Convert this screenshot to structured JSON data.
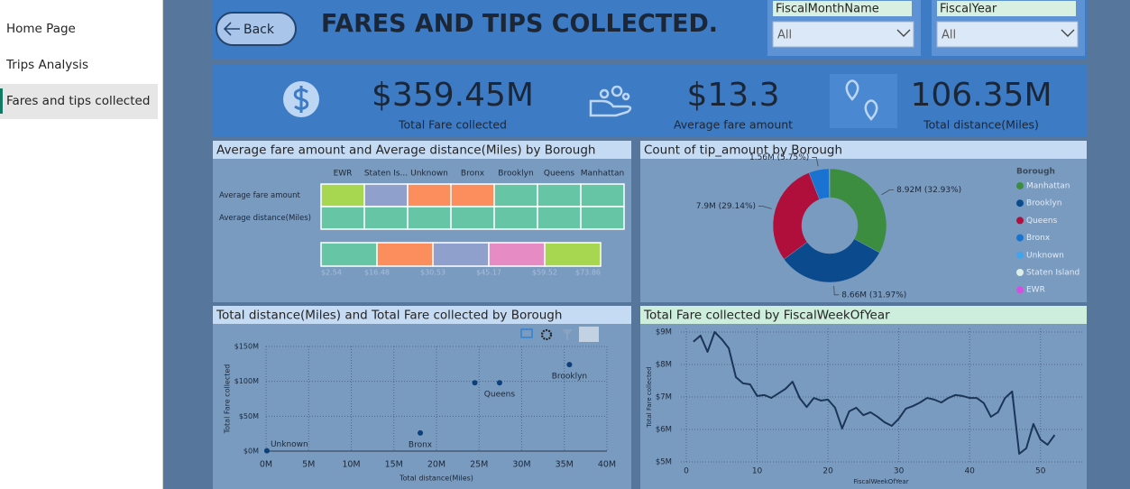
{
  "nav": {
    "items": [
      "Home Page",
      "Trips Analysis",
      "Fares and tips collected"
    ],
    "selected": 2
  },
  "header": {
    "back": "Back",
    "title": "FARES AND TIPS COLLECTED.",
    "slicers": [
      {
        "label": "FiscalMonthName",
        "value": "All"
      },
      {
        "label": "FiscalYear",
        "value": "All"
      }
    ]
  },
  "kpis": [
    {
      "value": "$359.45M",
      "label": "Total Fare collected"
    },
    {
      "value": "$13.3",
      "label": "Average fare amount"
    },
    {
      "value": "106.35M",
      "label": "Total distance(Miles)"
    }
  ],
  "chart_data": [
    {
      "type": "heatmap",
      "title": "Average fare amount and Average distance(Miles) by Borough",
      "columns": [
        "EWR",
        "Staten Is...",
        "Unknown",
        "Bronx",
        "Brooklyn",
        "Queens",
        "Manhattan"
      ],
      "rows": [
        "Average fare amount",
        "Average distance(Miles)"
      ],
      "values": [
        [
          65,
          38,
          22,
          22,
          15,
          15,
          12
        ],
        [
          3,
          10,
          3,
          5,
          4,
          8,
          2
        ]
      ],
      "bins": [
        {
          "value": 2.54,
          "label": "$2.54"
        },
        {
          "value": 16.48,
          "label": "$16.48"
        },
        {
          "value": 30.53,
          "label": "$30.53"
        },
        {
          "value": 45.17,
          "label": "$45.17"
        },
        {
          "value": 59.52,
          "label": "$59.52"
        },
        {
          "value": 73.86,
          "label": "$73.86"
        }
      ],
      "colors": [
        "#66c5a4",
        "#fc8d5c",
        "#8fa0cc",
        "#e68bc3",
        "#a7d651"
      ]
    },
    {
      "type": "donut",
      "title": "Count of tip_amount by Borough",
      "legend_title": "Borough",
      "categories": [
        "Manhattan",
        "Brooklyn",
        "Queens",
        "Bronx",
        "Unknown",
        "Staten Island",
        "EWR"
      ],
      "values": [
        8920000,
        8660000,
        7900000,
        1560000,
        30000,
        15000,
        5000
      ],
      "value_labels": [
        "8.92M (32.93%)",
        "8.66M (31.97%)",
        "7.9M (29.14%)",
        "1.56M (5.75%)",
        null,
        null,
        null
      ],
      "colors": [
        "#3d8d40",
        "#0c4a8e",
        "#b10f3b",
        "#1a73d1",
        "#40a4ee",
        "#dcefe6",
        "#d54fe0"
      ]
    },
    {
      "type": "scatter",
      "title": "Total distance(Miles) and Total Fare collected by Borough",
      "x_label": "Total distance(Miles)",
      "y_label": "Total Fare collected",
      "labels": [
        "Unknown",
        "Bronx",
        null,
        "Queens",
        "Brooklyn"
      ],
      "x": [
        100000,
        18100000,
        24500000,
        27400000,
        35600000
      ],
      "values": [
        500000,
        26000000,
        98000000,
        98000000,
        124000000
      ],
      "color": "#0d3f7a",
      "xlim": [
        0,
        40000000
      ],
      "xticks": [
        {
          "value": 0,
          "label": "0M"
        },
        {
          "value": 5000000,
          "label": "5M"
        },
        {
          "value": 10000000,
          "label": "10M"
        },
        {
          "value": 15000000,
          "label": "15M"
        },
        {
          "value": 20000000,
          "label": "20M"
        },
        {
          "value": 25000000,
          "label": "25M"
        },
        {
          "value": 30000000,
          "label": "30M"
        },
        {
          "value": 35000000,
          "label": "35M"
        },
        {
          "value": 40000000,
          "label": "40M"
        }
      ],
      "ylim": [
        0,
        150000000
      ],
      "yticks": [
        {
          "value": 0,
          "label": "$0M"
        },
        {
          "value": 50000000,
          "label": "$50M"
        },
        {
          "value": 100000000,
          "label": "$100M"
        },
        {
          "value": 150000000,
          "label": "$150M"
        }
      ],
      "grid": true
    },
    {
      "type": "line",
      "title": "Total Fare collected by FiscalWeekOfYear",
      "x_label": "FiscalWeekOfYear",
      "y_label": "Total Fare collected",
      "x": [
        1,
        2,
        3,
        4,
        5,
        6,
        7,
        8,
        9,
        10,
        11,
        12,
        13,
        14,
        15,
        16,
        17,
        18,
        19,
        20,
        21,
        22,
        23,
        24,
        25,
        26,
        27,
        28,
        29,
        30,
        31,
        32,
        33,
        34,
        35,
        36,
        37,
        38,
        39,
        40,
        41,
        42,
        43,
        44,
        45,
        46,
        47,
        48,
        49,
        50,
        51,
        52
      ],
      "values": [
        8700000,
        8890000,
        8390000,
        9000000,
        8780000,
        8500000,
        7610000,
        7420000,
        7390000,
        7030000,
        7060000,
        6970000,
        7110000,
        7250000,
        7470000,
        6970000,
        6690000,
        6970000,
        6890000,
        6920000,
        6670000,
        6030000,
        6560000,
        6670000,
        6440000,
        6530000,
        6390000,
        6220000,
        6110000,
        6330000,
        6640000,
        6720000,
        6830000,
        6970000,
        6920000,
        6830000,
        6970000,
        7060000,
        7030000,
        6970000,
        6970000,
        6810000,
        6390000,
        6530000,
        6970000,
        7170000,
        5250000,
        5420000,
        6170000,
        5690000,
        5530000,
        5830000
      ],
      "color": "#1b3556",
      "xlim": [
        0,
        55
      ],
      "xticks": [
        0,
        10,
        20,
        30,
        40,
        50
      ],
      "ylim": [
        5000000,
        9000000
      ],
      "yticks": [
        {
          "value": 5000000,
          "label": "$5M"
        },
        {
          "value": 6000000,
          "label": "$6M"
        },
        {
          "value": 7000000,
          "label": "$7M"
        },
        {
          "value": 8000000,
          "label": "$8M"
        },
        {
          "value": 9000000,
          "label": "$9M"
        }
      ],
      "grid": true
    }
  ]
}
